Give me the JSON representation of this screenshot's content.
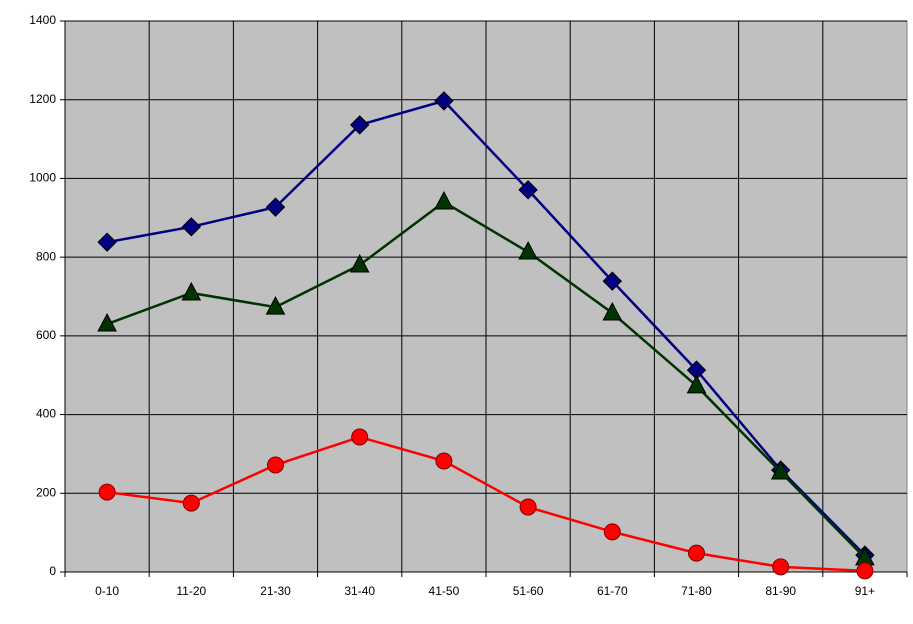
{
  "chart_data": {
    "type": "line",
    "categories": [
      "0-10",
      "11-20",
      "21-30",
      "31-40",
      "41-50",
      "51-60",
      "61-70",
      "71-80",
      "81-90",
      "91+"
    ],
    "series": [
      {
        "color": "#000080",
        "marker": "diamond",
        "values": [
          838,
          877,
          927,
          1136,
          1197,
          971,
          739,
          513,
          259,
          43
        ]
      },
      {
        "color": "#003300",
        "marker": "triangle",
        "values": [
          630,
          709,
          673,
          780,
          940,
          813,
          658,
          473,
          254,
          36
        ]
      },
      {
        "color": "#ff0000",
        "marker": "circle",
        "values": [
          203,
          175,
          272,
          343,
          282,
          165,
          102,
          48,
          13,
          3
        ]
      }
    ],
    "ylim": [
      0,
      1400
    ],
    "yticks": [
      0,
      200,
      400,
      600,
      800,
      1000,
      1200,
      1400
    ],
    "grid": true,
    "plot_background": "#c0c0c0"
  }
}
